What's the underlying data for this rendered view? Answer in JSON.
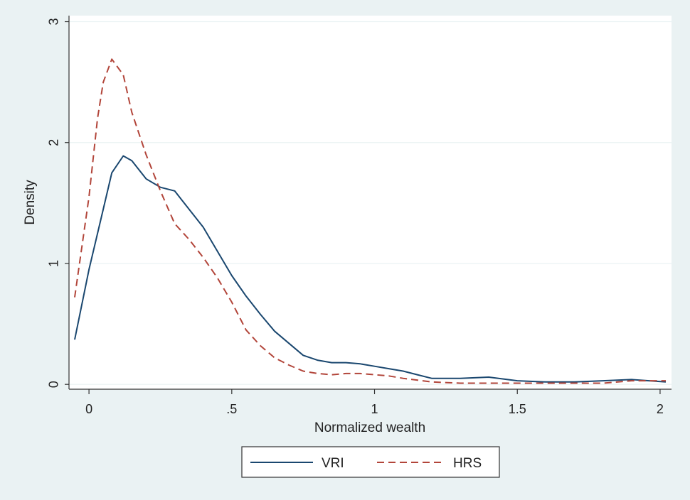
{
  "chart_data": {
    "type": "line",
    "title": "",
    "xlabel": "Normalized wealth",
    "ylabel": "Density",
    "xlim": [
      -0.07,
      2.04
    ],
    "ylim": [
      -0.04,
      3.05
    ],
    "x_ticks": [
      0,
      0.5,
      1,
      1.5,
      2
    ],
    "x_tick_labels": [
      "0",
      ".5",
      "1",
      "1.5",
      "2"
    ],
    "y_ticks": [
      0,
      1,
      2,
      3
    ],
    "y_tick_labels": [
      "0",
      "1",
      "2",
      "3"
    ],
    "grid": "horizontal",
    "legend_position": "bottom",
    "series": [
      {
        "name": "VRI",
        "color": "#1a476f",
        "style": "solid",
        "x": [
          -0.05,
          0.0,
          0.05,
          0.08,
          0.12,
          0.15,
          0.2,
          0.25,
          0.3,
          0.35,
          0.4,
          0.45,
          0.5,
          0.55,
          0.6,
          0.65,
          0.7,
          0.75,
          0.8,
          0.85,
          0.9,
          0.95,
          1.0,
          1.05,
          1.1,
          1.15,
          1.2,
          1.3,
          1.4,
          1.5,
          1.6,
          1.7,
          1.8,
          1.9,
          2.02
        ],
        "y": [
          0.37,
          0.95,
          1.45,
          1.75,
          1.89,
          1.85,
          1.7,
          1.63,
          1.6,
          1.45,
          1.3,
          1.1,
          0.9,
          0.73,
          0.58,
          0.44,
          0.34,
          0.24,
          0.2,
          0.18,
          0.18,
          0.17,
          0.15,
          0.13,
          0.11,
          0.08,
          0.05,
          0.05,
          0.06,
          0.03,
          0.02,
          0.02,
          0.03,
          0.04,
          0.02
        ]
      },
      {
        "name": "HRS",
        "color": "#b2453a",
        "style": "dashed",
        "x": [
          -0.05,
          0.0,
          0.03,
          0.05,
          0.08,
          0.12,
          0.15,
          0.2,
          0.25,
          0.3,
          0.35,
          0.4,
          0.45,
          0.5,
          0.55,
          0.6,
          0.65,
          0.7,
          0.75,
          0.8,
          0.85,
          0.9,
          0.95,
          1.0,
          1.05,
          1.1,
          1.2,
          1.3,
          1.4,
          1.5,
          1.6,
          1.7,
          1.8,
          1.9,
          2.02
        ],
        "y": [
          0.72,
          1.55,
          2.2,
          2.5,
          2.69,
          2.56,
          2.25,
          1.9,
          1.6,
          1.33,
          1.2,
          1.05,
          0.88,
          0.68,
          0.45,
          0.32,
          0.22,
          0.16,
          0.11,
          0.09,
          0.08,
          0.09,
          0.09,
          0.08,
          0.07,
          0.05,
          0.02,
          0.01,
          0.01,
          0.01,
          0.01,
          0.01,
          0.01,
          0.03,
          0.03
        ]
      }
    ]
  }
}
